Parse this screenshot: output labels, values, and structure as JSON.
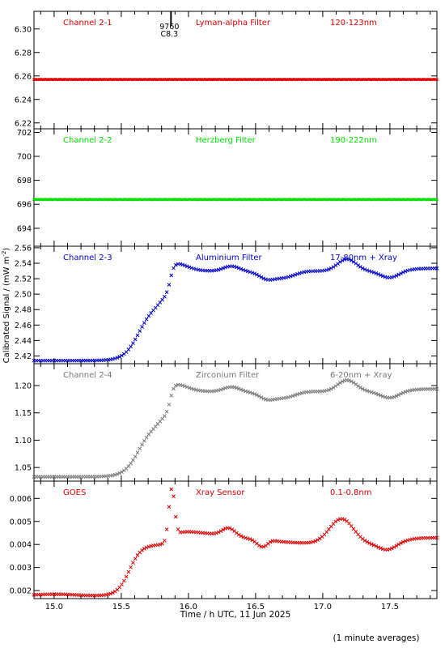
{
  "figure": {
    "ylabel_html": "Calibrated Signal / (mW m<tspan baseline-shift='super' font-size='7'>-2</tspan>)",
    "ylabel_text": "Calibrated Signal / (mW m-2)",
    "xlabel": "Time / h UTC, 11 Jun 2025",
    "footnote": "(1 minute averages)",
    "annotation_lines": [
      "9760",
      "C8.3"
    ],
    "annotation_time": 15.87
  },
  "chart_data": [
    {
      "type": "scatter",
      "channel": "Channel 2-1",
      "filter": "Lyman-alpha Filter",
      "band": "120-123nm",
      "color": "#dd0000",
      "xlim": [
        14.85,
        17.85
      ],
      "ylim": [
        6.215,
        6.315
      ],
      "yticks": [
        6.22,
        6.24,
        6.26,
        6.28,
        6.3
      ],
      "yticklabels": [
        "6.22",
        "6.24",
        "6.26",
        "6.28",
        "6.30"
      ],
      "profile": "flat",
      "baseline": 6.257
    },
    {
      "type": "scatter",
      "channel": "Channel 2-2",
      "filter": "Herzberg Filter",
      "band": "190-222nm",
      "color": "#00dd00",
      "xlim": [
        14.85,
        17.85
      ],
      "ylim": [
        692.5,
        702.3
      ],
      "yticks": [
        694,
        696,
        698,
        700,
        702
      ],
      "yticklabels": [
        "694",
        "696",
        "698",
        "700",
        "702"
      ],
      "profile": "flat",
      "baseline": 696.4
    },
    {
      "type": "scatter",
      "channel": "Channel 2-3",
      "filter": "Aluminium Filter",
      "band": "17-80nm + Xray",
      "color": "#0000cc",
      "xlim": [
        14.85,
        17.85
      ],
      "ylim": [
        2.41,
        2.562
      ],
      "yticks": [
        2.42,
        2.44,
        2.46,
        2.48,
        2.5,
        2.52,
        2.54,
        2.56
      ],
      "yticklabels": [
        "2.42",
        "2.44",
        "2.46",
        "2.48",
        "2.50",
        "2.52",
        "2.54",
        "2.56"
      ],
      "profile": "flare",
      "baseline": 2.414,
      "amplitude": 0.13
    },
    {
      "type": "scatter",
      "channel": "Channel 2-4",
      "filter": "Zirconium Filter",
      "band": "6-20nm + Xray",
      "color": "#777777",
      "xlim": [
        14.85,
        17.85
      ],
      "ylim": [
        1.025,
        1.24
      ],
      "yticks": [
        1.05,
        1.1,
        1.15,
        1.2
      ],
      "yticklabels": [
        "1.05",
        "1.10",
        "1.15",
        "1.20"
      ],
      "profile": "flare",
      "baseline": 1.033,
      "amplitude": 0.175
    },
    {
      "type": "scatter",
      "channel": "GOES",
      "filter": "Xray Sensor",
      "band": "0.1-0.8nm",
      "color": "#dd0000",
      "xlim": [
        14.85,
        17.85
      ],
      "ylim": [
        0.00165,
        0.00675
      ],
      "yticks": [
        0.002,
        0.003,
        0.004,
        0.005,
        0.006
      ],
      "yticklabels": [
        "0.002",
        "0.003",
        "0.004",
        "0.005",
        "0.006"
      ],
      "profile": "goes"
    }
  ],
  "xaxis": {
    "ticks": [
      15.0,
      15.5,
      16.0,
      16.5,
      17.0,
      17.5
    ],
    "ticklabels": [
      "15.0",
      "15.5",
      "16.0",
      "16.5",
      "17.0",
      "17.5"
    ]
  }
}
